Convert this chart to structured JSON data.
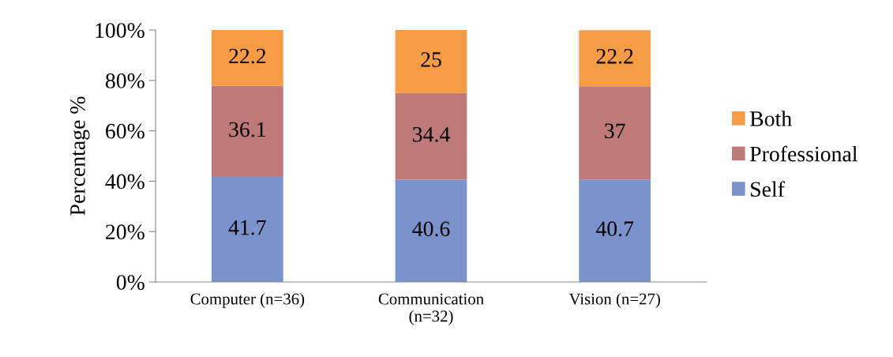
{
  "chart_data": {
    "type": "bar",
    "stacked": true,
    "ylabel": "Percentage %",
    "categories": [
      "Computer (n=36)",
      "Communication (n=32)",
      "Vision (n=27)"
    ],
    "series": [
      {
        "name": "Self",
        "color": "#7b93cc",
        "values": [
          41.7,
          40.6,
          40.7
        ]
      },
      {
        "name": "Professional",
        "color": "#be7a78",
        "values": [
          36.1,
          34.4,
          37
        ]
      },
      {
        "name": "Both",
        "color": "#f59c45",
        "values": [
          22.2,
          25,
          22.2
        ]
      }
    ],
    "ylim": [
      0,
      100
    ],
    "yticks": [
      {
        "value": 0,
        "label": "0%"
      },
      {
        "value": 20,
        "label": "20%"
      },
      {
        "value": 40,
        "label": "40%"
      },
      {
        "value": 60,
        "label": "60%"
      },
      {
        "value": 80,
        "label": "80%"
      },
      {
        "value": 100,
        "label": "100%"
      }
    ],
    "data_labels": true,
    "legend": "right",
    "grid": false
  }
}
